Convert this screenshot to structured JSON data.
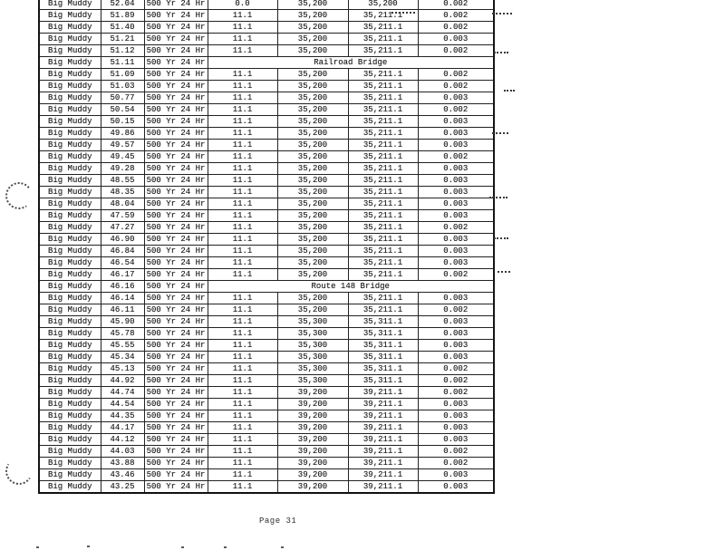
{
  "document": {
    "footer_page_label": "Page 31"
  },
  "table": {
    "rows": [
      {
        "river": "Big Muddy",
        "station": "52.04",
        "profile": "500 Yr 24 Hr",
        "values": [
          "0.0",
          "35,200",
          "35,200",
          "0.002"
        ]
      },
      {
        "river": "Big Muddy",
        "station": "51.89",
        "profile": "500 Yr 24 Hr",
        "values": [
          "11.1",
          "35,200",
          "35,211.1",
          "0.002"
        ]
      },
      {
        "river": "Big Muddy",
        "station": "51.40",
        "profile": "500 Yr 24 Hr",
        "values": [
          "11.1",
          "35,200",
          "35,211.1",
          "0.002"
        ]
      },
      {
        "river": "Big Muddy",
        "station": "51.21",
        "profile": "500 Yr 24 Hr",
        "values": [
          "11.1",
          "35,200",
          "35,211.1",
          "0.003"
        ]
      },
      {
        "river": "Big Muddy",
        "station": "51.12",
        "profile": "500 Yr 24 Hr",
        "values": [
          "11.1",
          "35,200",
          "35,211.1",
          "0.002"
        ]
      },
      {
        "river": "Big Muddy",
        "station": "51.11",
        "profile": "500 Yr 24 Hr",
        "bridge_label": "Railroad Bridge"
      },
      {
        "river": "Big Muddy",
        "station": "51.09",
        "profile": "500 Yr 24 Hr",
        "values": [
          "11.1",
          "35,200",
          "35,211.1",
          "0.002"
        ]
      },
      {
        "river": "Big Muddy",
        "station": "51.03",
        "profile": "500 Yr 24 Hr",
        "values": [
          "11.1",
          "35,200",
          "35,211.1",
          "0.002"
        ]
      },
      {
        "river": "Big Muddy",
        "station": "50.77",
        "profile": "500 Yr 24 Hr",
        "values": [
          "11.1",
          "35,200",
          "35,211.1",
          "0.003"
        ]
      },
      {
        "river": "Big Muddy",
        "station": "50.54",
        "profile": "500 Yr 24 Hr",
        "values": [
          "11.1",
          "35,200",
          "35,211.1",
          "0.002"
        ]
      },
      {
        "river": "Big Muddy",
        "station": "50.15",
        "profile": "500 Yr 24 Hr",
        "values": [
          "11.1",
          "35,200",
          "35,211.1",
          "0.003"
        ]
      },
      {
        "river": "Big Muddy",
        "station": "49.86",
        "profile": "500 Yr 24 Hr",
        "values": [
          "11.1",
          "35,200",
          "35,211.1",
          "0.003"
        ]
      },
      {
        "river": "Big Muddy",
        "station": "49.57",
        "profile": "500 Yr 24 Hr",
        "values": [
          "11.1",
          "35,200",
          "35,211.1",
          "0.003"
        ]
      },
      {
        "river": "Big Muddy",
        "station": "49.45",
        "profile": "500 Yr 24 Hr",
        "values": [
          "11.1",
          "35,200",
          "35,211.1",
          "0.002"
        ]
      },
      {
        "river": "Big Muddy",
        "station": "49.28",
        "profile": "500 Yr 24 Hr",
        "values": [
          "11.1",
          "35,200",
          "35,211.1",
          "0.003"
        ]
      },
      {
        "river": "Big Muddy",
        "station": "48.55",
        "profile": "500 Yr 24 Hr",
        "values": [
          "11.1",
          "35,200",
          "35,211.1",
          "0.003"
        ]
      },
      {
        "river": "Big Muddy",
        "station": "48.35",
        "profile": "500 Yr 24 Hr",
        "values": [
          "11.1",
          "35,200",
          "35,211.1",
          "0.003"
        ]
      },
      {
        "river": "Big Muddy",
        "station": "48.04",
        "profile": "500 Yr 24 Hr",
        "values": [
          "11.1",
          "35,200",
          "35,211.1",
          "0.003"
        ]
      },
      {
        "river": "Big Muddy",
        "station": "47.59",
        "profile": "500 Yr 24 Hr",
        "values": [
          "11.1",
          "35,200",
          "35,211.1",
          "0.003"
        ]
      },
      {
        "river": "Big Muddy",
        "station": "47.27",
        "profile": "500 Yr 24 Hr",
        "values": [
          "11.1",
          "35,200",
          "35,211.1",
          "0.002"
        ]
      },
      {
        "river": "Big Muddy",
        "station": "46.90",
        "profile": "500 Yr 24 Hr",
        "values": [
          "11.1",
          "35,200",
          "35,211.1",
          "0.003"
        ]
      },
      {
        "river": "Big Muddy",
        "station": "46.84",
        "profile": "500 Yr 24 Hr",
        "values": [
          "11.1",
          "35,200",
          "35,211.1",
          "0.003"
        ]
      },
      {
        "river": "Big Muddy",
        "station": "46.54",
        "profile": "500 Yr 24 Hr",
        "values": [
          "11.1",
          "35,200",
          "35,211.1",
          "0.003"
        ]
      },
      {
        "river": "Big Muddy",
        "station": "46.17",
        "profile": "500 Yr 24 Hr",
        "values": [
          "11.1",
          "35,200",
          "35,211.1",
          "0.002"
        ]
      },
      {
        "river": "Big Muddy",
        "station": "46.16",
        "profile": "500 Yr 24 Hr",
        "bridge_label": "Route 148 Bridge"
      },
      {
        "river": "Big Muddy",
        "station": "46.14",
        "profile": "500 Yr 24 Hr",
        "values": [
          "11.1",
          "35,200",
          "35,211.1",
          "0.003"
        ]
      },
      {
        "river": "Big Muddy",
        "station": "46.11",
        "profile": "500 Yr 24 Hr",
        "values": [
          "11.1",
          "35,200",
          "35,211.1",
          "0.002"
        ]
      },
      {
        "river": "Big Muddy",
        "station": "45.90",
        "profile": "500 Yr 24 Hr",
        "values": [
          "11.1",
          "35,300",
          "35,311.1",
          "0.003"
        ]
      },
      {
        "river": "Big Muddy",
        "station": "45.78",
        "profile": "500 Yr 24 Hr",
        "values": [
          "11.1",
          "35,300",
          "35,311.1",
          "0.003"
        ]
      },
      {
        "river": "Big Muddy",
        "station": "45.55",
        "profile": "500 Yr 24 Hr",
        "values": [
          "11.1",
          "35,300",
          "35,311.1",
          "0.003"
        ]
      },
      {
        "river": "Big Muddy",
        "station": "45.34",
        "profile": "500 Yr 24 Hr",
        "values": [
          "11.1",
          "35,300",
          "35,311.1",
          "0.003"
        ]
      },
      {
        "river": "Big Muddy",
        "station": "45.13",
        "profile": "500 Yr 24 Hr",
        "values": [
          "11.1",
          "35,300",
          "35,311.1",
          "0.002"
        ]
      },
      {
        "river": "Big Muddy",
        "station": "44.92",
        "profile": "500 Yr 24 Hr",
        "values": [
          "11.1",
          "35,300",
          "35,311.1",
          "0.002"
        ]
      },
      {
        "river": "Big Muddy",
        "station": "44.74",
        "profile": "500 Yr 24 Hr",
        "values": [
          "11.1",
          "39,200",
          "39,211.1",
          "0.002"
        ]
      },
      {
        "river": "Big Muddy",
        "station": "44.54",
        "profile": "500 Yr 24 Hr",
        "values": [
          "11.1",
          "39,200",
          "39,211.1",
          "0.003"
        ]
      },
      {
        "river": "Big Muddy",
        "station": "44.35",
        "profile": "500 Yr 24 Hr",
        "values": [
          "11.1",
          "39,200",
          "39,211.1",
          "0.003"
        ]
      },
      {
        "river": "Big Muddy",
        "station": "44.17",
        "profile": "500 Yr 24 Hr",
        "values": [
          "11.1",
          "39,200",
          "39,211.1",
          "0.003"
        ]
      },
      {
        "river": "Big Muddy",
        "station": "44.12",
        "profile": "500 Yr 24 Hr",
        "values": [
          "11.1",
          "39,200",
          "39,211.1",
          "0.003"
        ]
      },
      {
        "river": "Big Muddy",
        "station": "44.03",
        "profile": "500 Yr 24 Hr",
        "values": [
          "11.1",
          "39,200",
          "39,211.1",
          "0.002"
        ]
      },
      {
        "river": "Big Muddy",
        "station": "43.88",
        "profile": "500 Yr 24 Hr",
        "values": [
          "11.1",
          "39,200",
          "39,211.1",
          "0.002"
        ]
      },
      {
        "river": "Big Muddy",
        "station": "43.46",
        "profile": "500 Yr 24 Hr",
        "values": [
          "11.1",
          "39,200",
          "39,211.1",
          "0.003"
        ]
      },
      {
        "river": "Big Muddy",
        "station": "43.25",
        "profile": "500 Yr 24 Hr",
        "values": [
          "11.1",
          "39,200",
          "39,211.1",
          "0.003"
        ]
      }
    ]
  }
}
